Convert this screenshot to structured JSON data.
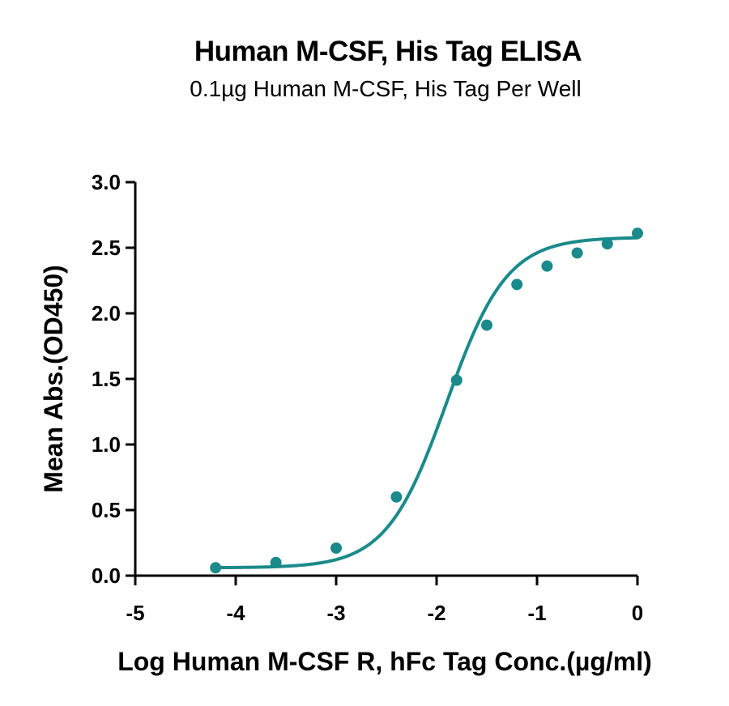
{
  "chart_data": {
    "type": "scatter",
    "title": "Human M-CSF, His Tag ELISA",
    "subtitle": "0.1µg Human M-CSF, His Tag Per Well",
    "xlabel": "Log Human M-CSF R, hFc Tag Conc.(µg/ml)",
    "ylabel": "Mean Abs.(OD450)",
    "xlim": [
      -5,
      0
    ],
    "ylim": [
      0,
      3.0
    ],
    "xticks": [
      -5,
      -4,
      -3,
      -2,
      -1,
      0
    ],
    "xtick_labels": [
      "-5",
      "-4",
      "-3",
      "-2",
      "-1",
      "0"
    ],
    "yticks": [
      0,
      0.5,
      1.0,
      1.5,
      2.0,
      2.5,
      3.0
    ],
    "ytick_labels": [
      "0.0",
      "0.5",
      "1.0",
      "1.5",
      "2.0",
      "2.5",
      "3.0"
    ],
    "grid": false,
    "color": "#1a8a8a",
    "series": [
      {
        "x": [
          -4.2,
          -3.6,
          -3.0,
          -2.4,
          -1.8,
          -1.5,
          -1.2,
          -0.9,
          -0.6,
          -0.3,
          0.0
        ],
        "values": [
          0.06,
          0.1,
          0.21,
          0.6,
          1.49,
          1.91,
          2.22,
          2.36,
          2.46,
          2.53,
          2.61
        ]
      }
    ],
    "fit_curve": {
      "model": "4PL",
      "bottom": 0.06,
      "top": 2.58,
      "logEC50": -1.9,
      "hill": 1.45
    }
  }
}
